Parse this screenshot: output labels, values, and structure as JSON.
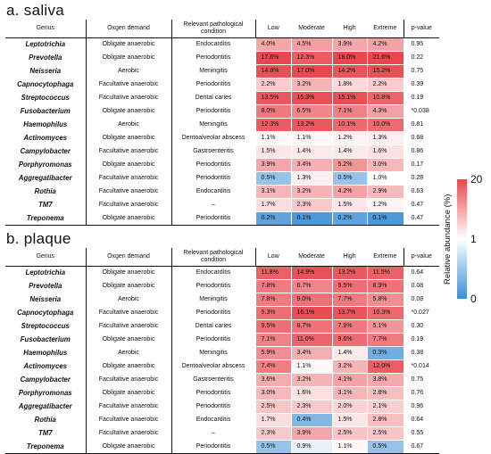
{
  "headers": {
    "genus": "Genus",
    "oxygen": "Oxgen demand",
    "pathology": "Relevant pathological condition",
    "low": "Low",
    "moderate": "Moderate",
    "high": "High",
    "extreme": "Extreme",
    "pvalue": "p-value"
  },
  "legend": {
    "title": "Relative abundance (%)",
    "ticks": [
      "20",
      "1",
      "0"
    ],
    "colors": {
      "high": "#e8474d",
      "mid": "#ffffff",
      "low": "#3a8fd6"
    }
  },
  "panels": [
    {
      "title": "a. saliva",
      "rows": [
        {
          "genus": "Leptotrichia",
          "oxygen": "Obligate anaerobic",
          "condition": "Endocarditis",
          "values": [
            "4.0%",
            "4.5%",
            "3.9%",
            "4.2%"
          ],
          "pvalue": "0.95"
        },
        {
          "genus": "Prevotella",
          "oxygen": "Obligate anaerobic",
          "condition": "Periodontitis",
          "values": [
            "17.6%",
            "12.3%",
            "18.0%",
            "21.6%"
          ],
          "pvalue": "0.22"
        },
        {
          "genus": "Neisseria",
          "oxygen": "Aerobic",
          "condition": "Meningitis",
          "values": [
            "14.8%",
            "17.0%",
            "14.2%",
            "15.2%"
          ],
          "pvalue": "0.75"
        },
        {
          "genus": "Capnocytophaga",
          "oxygen": "Facultative anaerobic",
          "condition": "Periodontitis",
          "values": [
            "2.2%",
            "3.2%",
            "1.8%",
            "2.2%"
          ],
          "pvalue": "0.39"
        },
        {
          "genus": "Streptococcus",
          "oxygen": "Facultative anaerobic",
          "condition": "Dental caries",
          "values": [
            "13.5%",
            "15.3%",
            "15.1%",
            "10.8%"
          ],
          "pvalue": "0.19"
        },
        {
          "genus": "Fusobacterium",
          "oxygen": "Obligate anaerobic",
          "condition": "Periodontitis",
          "values": [
            "8.0%",
            "6.5%",
            "7.1%",
            "4.3%"
          ],
          "pvalue": "*0.038"
        },
        {
          "genus": "Haemophilus",
          "oxygen": "Aerobic",
          "condition": "Meningitis",
          "values": [
            "12.3%",
            "13.2%",
            "10.1%",
            "10.0%"
          ],
          "pvalue": "0.81"
        },
        {
          "genus": "Actinomyces",
          "oxygen": "Obligate anaerobic",
          "condition": "Dentoalveolar abscess",
          "values": [
            "1.1%",
            "1.1%",
            "1.2%",
            "1.3%"
          ],
          "pvalue": "0.68"
        },
        {
          "genus": "Campylobacter",
          "oxygen": "Facultative anaerobic",
          "condition": "Gastroenteritis",
          "values": [
            "1.5%",
            "1.4%",
            "1.4%",
            "1.6%"
          ],
          "pvalue": "0.86"
        },
        {
          "genus": "Porphyromonas",
          "oxygen": "Obligate anaerobic",
          "condition": "Periodontitis",
          "values": [
            "3.9%",
            "3.4%",
            "5.2%",
            "3.0%"
          ],
          "pvalue": "0.17"
        },
        {
          "genus": "Aggregatibacter",
          "oxygen": "Facultative anaerobic",
          "condition": "Periodontitis",
          "values": [
            "0.5%",
            "1.3%",
            "0.5%",
            "1.0%"
          ],
          "pvalue": "0.28"
        },
        {
          "genus": "Rothia",
          "oxygen": "Facultative anaerobic",
          "condition": "Endocarditis",
          "values": [
            "3.1%",
            "3.2%",
            "4.2%",
            "2.9%"
          ],
          "pvalue": "0.63"
        },
        {
          "genus": "TM7",
          "oxygen": "Facultative anaerobic",
          "condition": "–",
          "values": [
            "1.7%",
            "2.3%",
            "1.5%",
            "1.2%"
          ],
          "pvalue": "0.47"
        },
        {
          "genus": "Treponema",
          "oxygen": "Obligate anaerobic",
          "condition": "Periodontitis",
          "values": [
            "0.2%",
            "0.1%",
            "0.2%",
            "0.1%"
          ],
          "pvalue": "0.47"
        }
      ]
    },
    {
      "title": "b. plaque",
      "rows": [
        {
          "genus": "Leptotrichia",
          "oxygen": "Obligate anaerobic",
          "condition": "Endocarditis",
          "values": [
            "11.8%",
            "14.9%",
            "13.2%",
            "11.5%"
          ],
          "pvalue": "0.64"
        },
        {
          "genus": "Prevotella",
          "oxygen": "Obligate anaerobic",
          "condition": "Periodontitis",
          "values": [
            "7.8%",
            "6.7%",
            "9.5%",
            "8.9%"
          ],
          "pvalue": "0.08"
        },
        {
          "genus": "Neisseria",
          "oxygen": "Aerobic",
          "condition": "Meningitis",
          "values": [
            "7.8%",
            "9.0%",
            "7.7%",
            "5.8%"
          ],
          "pvalue": "0.08"
        },
        {
          "genus": "Capnocytophaga",
          "oxygen": "Facultative anaerobic",
          "condition": "Periodontitis",
          "values": [
            "9.3%",
            "16.1%",
            "13.7%",
            "10.3%"
          ],
          "pvalue": "*0.027"
        },
        {
          "genus": "Streptococcus",
          "oxygen": "Facultative anaerobic",
          "condition": "Dental caries",
          "values": [
            "9.5%",
            "8.7%",
            "7.9%",
            "5.1%"
          ],
          "pvalue": "0.30"
        },
        {
          "genus": "Fusobacterium",
          "oxygen": "Obligate anaerobic",
          "condition": "Periodontitis",
          "values": [
            "7.1%",
            "11.0%",
            "9.6%",
            "7.7%"
          ],
          "pvalue": "0.19"
        },
        {
          "genus": "Haemophilus",
          "oxygen": "Aerobic",
          "condition": "Meningitis",
          "values": [
            "5.9%",
            "3.4%",
            "1.4%",
            "0.3%"
          ],
          "pvalue": "0.38"
        },
        {
          "genus": "Actinomyces",
          "oxygen": "Obligate anaerobic",
          "condition": "Dentoalveolar abscess",
          "values": [
            "7.4%",
            "1.1%",
            "3.2%",
            "12.0%"
          ],
          "pvalue": "*0.014"
        },
        {
          "genus": "Campylobacter",
          "oxygen": "Facultative anaerobic",
          "condition": "Gastroenteritis",
          "values": [
            "3.6%",
            "3.2%",
            "4.1%",
            "3.8%"
          ],
          "pvalue": "0.75"
        },
        {
          "genus": "Porphyromonas",
          "oxygen": "Obligate anaerobic",
          "condition": "Periodontitis",
          "values": [
            "3.0%",
            "1.6%",
            "3.1%",
            "2.8%"
          ],
          "pvalue": "0.76"
        },
        {
          "genus": "Aggregatibacter",
          "oxygen": "Facultative anaerobic",
          "condition": "Periodontitis",
          "values": [
            "2.5%",
            "2.3%",
            "2.0%",
            "2.1%"
          ],
          "pvalue": "0.96"
        },
        {
          "genus": "Rothia",
          "oxygen": "Facultative anaerobic",
          "condition": "Endocarditis",
          "values": [
            "1.7%",
            "0.4%",
            "1.5%",
            "2.8%"
          ],
          "pvalue": "0.64"
        },
        {
          "genus": "TM7",
          "oxygen": "Facultative anaerobic",
          "condition": "–",
          "values": [
            "2.3%",
            "3.9%",
            "2.5%",
            "2.5%"
          ],
          "pvalue": "0.55"
        },
        {
          "genus": "Treponema",
          "oxygen": "Obligate anaerobic",
          "condition": "Periodontitis",
          "values": [
            "0.5%",
            "0.9%",
            "1.1%",
            "0.5%"
          ],
          "pvalue": "0.67"
        }
      ]
    }
  ]
}
